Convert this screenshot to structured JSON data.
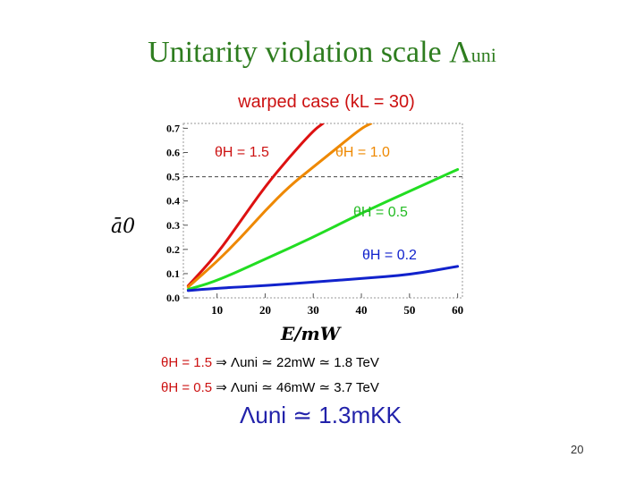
{
  "slide": {
    "title": "Unitarity violation scale ",
    "title_symbol": "Λ",
    "title_sub": "uni",
    "page_number": "20"
  },
  "notes": {
    "line1": {
      "theta": "θH = 1.5",
      "arrow": "⇒",
      "rest": "Λuni ≃ 22mW ≃ 1.8 TeV"
    },
    "line2": {
      "theta": "θH = 0.5",
      "arrow": "⇒",
      "rest": "Λuni ≃ 46mW ≃ 3.7 TeV"
    },
    "big": "Λuni ≃ 1.3mKK"
  },
  "colors": {
    "title": "#2e7d1f",
    "red": "#dd1111",
    "orange": "#ee8800",
    "green": "#22dd22",
    "blue": "#1122cc"
  },
  "chart_data": {
    "type": "line",
    "title": "warped case (kL = 30)",
    "xlabel": "E/mW",
    "ylabel": "ā0",
    "xlim": [
      3,
      61
    ],
    "ylim": [
      0,
      0.72
    ],
    "xticks": [
      10,
      20,
      30,
      40,
      50,
      60
    ],
    "yticks": [
      0.0,
      0.1,
      0.2,
      0.3,
      0.4,
      0.5,
      0.6,
      0.7
    ],
    "reference_line": 0.5,
    "series": [
      {
        "name": "θH = 1.5",
        "color": "#dd1111",
        "x": [
          4,
          10,
          15,
          20,
          25,
          30,
          32
        ],
        "y": [
          0.05,
          0.18,
          0.32,
          0.46,
          0.58,
          0.69,
          0.72
        ]
      },
      {
        "name": "θH = 1.0",
        "color": "#ee8800",
        "x": [
          4,
          10,
          15,
          20,
          25,
          30,
          35,
          40,
          42
        ],
        "y": [
          0.045,
          0.15,
          0.25,
          0.36,
          0.46,
          0.54,
          0.62,
          0.7,
          0.72
        ]
      },
      {
        "name": "θH = 0.5",
        "color": "#22dd22",
        "x": [
          4,
          10,
          20,
          30,
          40,
          50,
          60
        ],
        "y": [
          0.035,
          0.07,
          0.16,
          0.25,
          0.35,
          0.44,
          0.53
        ]
      },
      {
        "name": "θH = 0.2",
        "color": "#1122cc",
        "x": [
          4,
          10,
          20,
          30,
          40,
          50,
          60
        ],
        "y": [
          0.03,
          0.04,
          0.05,
          0.065,
          0.08,
          0.095,
          0.13
        ]
      }
    ]
  }
}
